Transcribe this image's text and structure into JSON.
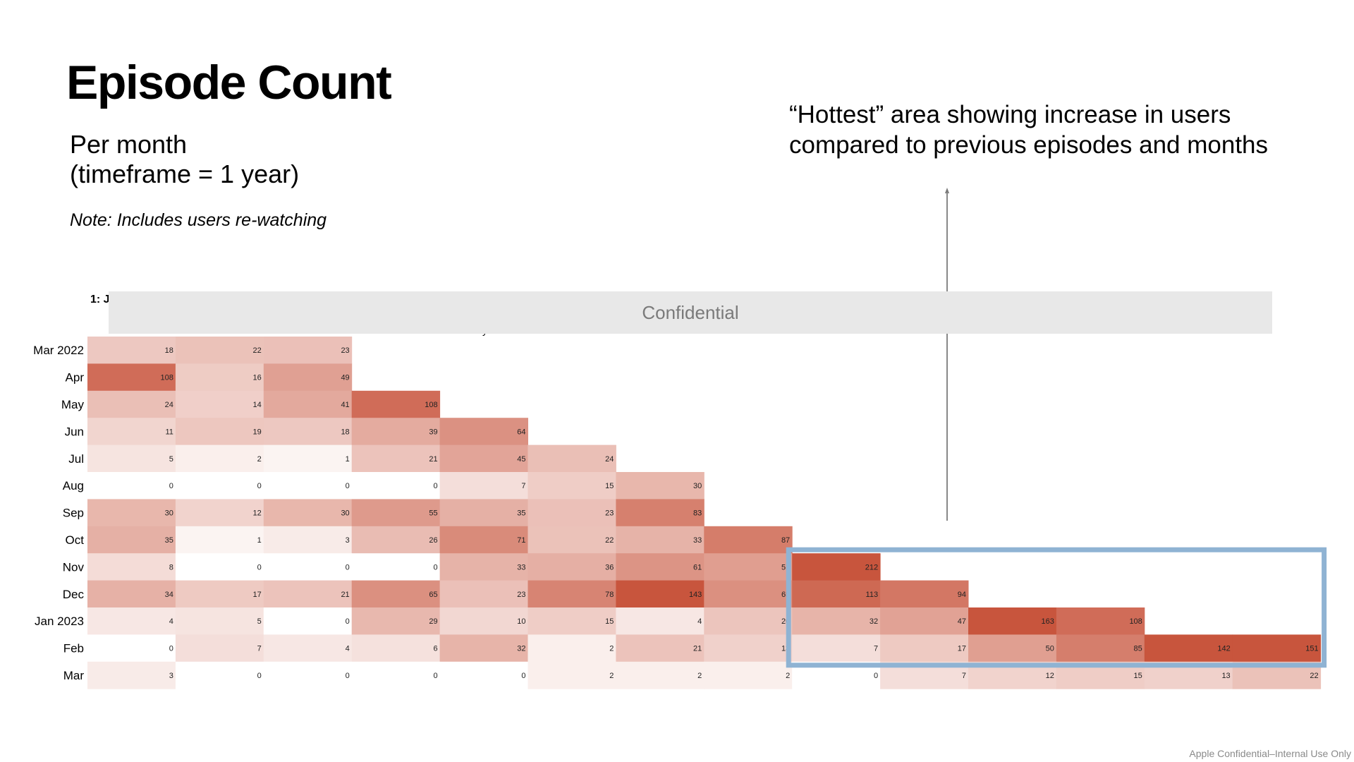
{
  "slide": {
    "title": "Episode Count",
    "subtitle_line1": "Per month",
    "subtitle_line2": "(timeframe = 1 year)",
    "note": "Note: Includes users re-watching",
    "callout_line1": "“Hottest” area showing increase in users",
    "callout_line2": "compared to previous episodes and months",
    "header_left_fragment": "1: J",
    "header_right_fragment": "e",
    "header_mid_fragment": "y",
    "banner_text": "Confidential",
    "footer": "Apple Confidential–Internal Use Only"
  },
  "colors": {
    "heat_max": "#c8553d",
    "highlight_box": "#8fb3d3",
    "arrow": "#888888",
    "banner_bg": "#e8e8e8"
  },
  "chart_data": {
    "type": "heatmap",
    "rows": [
      "Mar 2022",
      "Apr",
      "May",
      "Jun",
      "Jul",
      "Aug",
      "Sep",
      "Oct",
      "Nov",
      "Dec",
      "Jan 2023",
      "Feb",
      "Mar"
    ],
    "values": [
      [
        18,
        22,
        23
      ],
      [
        108,
        16,
        49
      ],
      [
        24,
        14,
        41,
        108
      ],
      [
        11,
        19,
        18,
        39,
        64
      ],
      [
        5,
        2,
        1,
        21,
        45,
        24
      ],
      [
        0,
        0,
        0,
        0,
        7,
        15,
        30
      ],
      [
        30,
        12,
        30,
        55,
        35,
        23,
        83
      ],
      [
        35,
        1,
        3,
        26,
        71,
        22,
        33,
        87
      ],
      [
        8,
        0,
        0,
        0,
        33,
        36,
        61,
        51,
        212
      ],
      [
        34,
        17,
        21,
        65,
        23,
        78,
        143,
        65,
        113,
        94
      ],
      [
        4,
        5,
        0,
        29,
        10,
        15,
        4,
        20,
        32,
        47,
        163,
        108
      ],
      [
        0,
        7,
        4,
        6,
        32,
        2,
        21,
        13,
        7,
        17,
        50,
        85,
        142,
        151
      ],
      [
        3,
        0,
        0,
        0,
        0,
        2,
        2,
        2,
        0,
        7,
        12,
        15,
        13,
        22
      ]
    ],
    "highlight": {
      "row_start": 8,
      "row_end": 11,
      "col_start": 8,
      "col_end": 13
    }
  }
}
